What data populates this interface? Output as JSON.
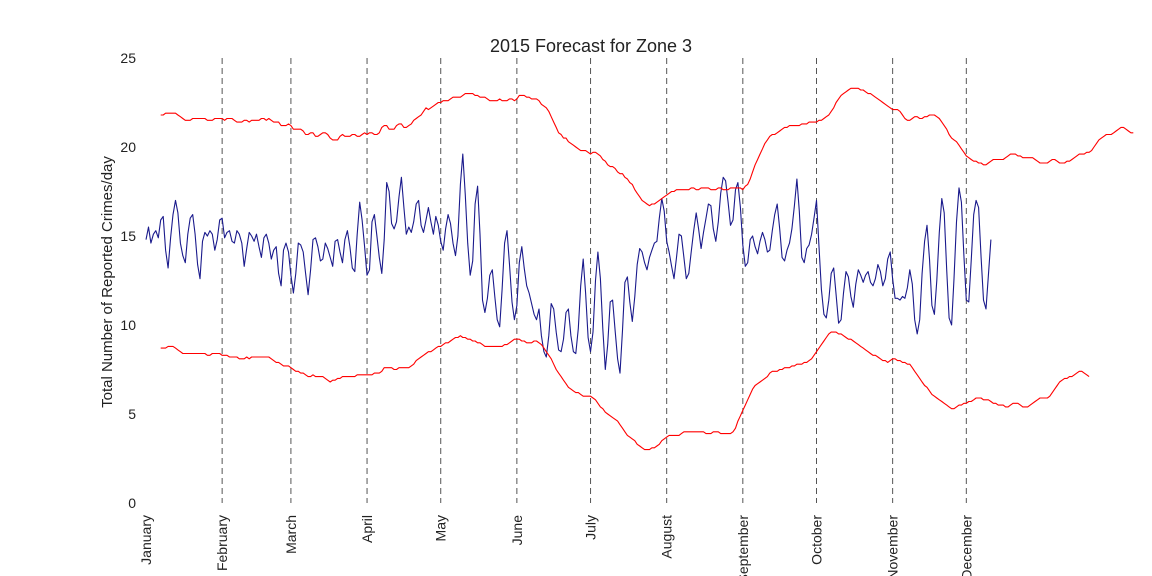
{
  "chart_data": {
    "type": "line",
    "title": "2015 Forecast for Zone 3",
    "xlabel": "",
    "ylabel": "Total Number of Reported Crimes/day",
    "ylim": [
      0,
      25
    ],
    "xlim": [
      "2015-01-01",
      "2015-12-31"
    ],
    "yticks": [
      0,
      5,
      10,
      15,
      20,
      25
    ],
    "month_ticks": [
      "January",
      "February",
      "March",
      "April",
      "May",
      "June",
      "July",
      "August",
      "September",
      "October",
      "November",
      "December"
    ],
    "month_lines": [
      "2015-02-01",
      "2015-03-01",
      "2015-04-01",
      "2015-05-01",
      "2015-06-01",
      "2015-07-01",
      "2015-08-01",
      "2015-09-01",
      "2015-10-01",
      "2015-11-01",
      "2015-12-01"
    ],
    "grid": false,
    "colors": {
      "forecast": "#1a1a8c",
      "bounds": "#ff0000",
      "month_lines": "#555555"
    },
    "series": [
      {
        "role": "forecast",
        "x_start": "2015-01-01",
        "x_step_days": 1,
        "values": [
          14.8,
          15.5,
          14.6,
          15.1,
          15.3,
          14.9,
          15.9,
          16.1,
          14.2,
          13.2,
          14.9,
          16.2,
          17.0,
          16.3,
          14.6,
          13.9,
          13.5,
          15.1,
          16.0,
          16.2,
          15.1,
          13.4,
          12.6,
          14.7,
          15.2,
          15.0,
          15.3,
          15.1,
          14.2,
          14.8,
          15.9,
          16.0,
          14.9,
          15.2,
          15.3,
          14.7,
          14.6,
          15.3,
          15.1,
          14.6,
          13.3,
          14.3,
          15.2,
          15.0,
          14.7,
          15.1,
          14.4,
          13.8,
          14.9,
          15.1,
          14.6,
          13.7,
          14.2,
          14.4,
          12.9,
          12.2,
          14.2,
          14.6,
          14.1,
          12.8,
          11.8,
          12.9,
          14.6,
          14.5,
          14.1,
          12.9,
          11.7,
          13.1,
          14.8,
          14.9,
          14.4,
          13.6,
          13.7,
          14.6,
          14.3,
          13.8,
          13.3,
          14.7,
          14.8,
          14.1,
          13.5,
          14.8,
          15.3,
          14.4,
          13.2,
          13.0,
          15.1,
          16.9,
          15.9,
          14.4,
          12.8,
          13.1,
          15.8,
          16.2,
          15.0,
          13.8,
          12.9,
          14.8,
          18.0,
          17.5,
          15.7,
          15.4,
          15.8,
          17.2,
          18.3,
          16.6,
          15.1,
          15.5,
          15.2,
          15.8,
          16.8,
          17.0,
          15.6,
          15.2,
          15.9,
          16.6,
          15.8,
          15.1,
          16.1,
          15.6,
          14.7,
          14.2,
          15.4,
          16.2,
          15.7,
          14.6,
          13.9,
          15.0,
          17.9,
          19.6,
          17.3,
          14.6,
          12.8,
          13.6,
          16.8,
          17.8,
          15.1,
          11.4,
          10.7,
          11.5,
          12.8,
          13.1,
          11.6,
          10.3,
          9.9,
          12.0,
          14.6,
          15.3,
          13.4,
          11.3,
          10.3,
          11.1,
          13.5,
          14.4,
          13.2,
          12.2,
          11.8,
          11.2,
          10.6,
          10.3,
          10.9,
          9.4,
          8.5,
          8.2,
          9.4,
          11.2,
          10.9,
          9.6,
          8.6,
          8.5,
          9.2,
          10.7,
          10.9,
          9.4,
          8.5,
          8.4,
          9.8,
          12.2,
          13.7,
          11.8,
          9.3,
          8.5,
          9.6,
          12.5,
          14.1,
          12.6,
          9.8,
          7.5,
          8.9,
          11.3,
          11.4,
          9.7,
          8.1,
          7.3,
          9.7,
          12.4,
          12.7,
          11.3,
          10.2,
          11.6,
          13.4,
          14.3,
          14.1,
          13.5,
          13.1,
          13.8,
          14.2,
          14.6,
          14.7,
          16.0,
          17.1,
          16.4,
          14.7,
          14.1,
          13.3,
          12.6,
          13.8,
          15.1,
          15.0,
          13.8,
          12.6,
          12.9,
          14.1,
          15.3,
          16.3,
          15.4,
          14.3,
          15.2,
          16.0,
          16.8,
          16.7,
          15.4,
          14.7,
          15.8,
          17.4,
          18.3,
          18.1,
          16.9,
          15.6,
          15.9,
          17.6,
          18.0,
          16.6,
          14.5,
          13.3,
          13.5,
          14.8,
          15.0,
          14.4,
          14.0,
          14.7,
          15.2,
          14.8,
          14.1,
          14.2,
          15.3,
          16.2,
          16.8,
          15.4,
          13.8,
          13.6,
          14.2,
          14.6,
          15.4,
          16.7,
          18.2,
          16.4,
          13.8,
          13.5,
          14.3,
          14.5,
          15.1,
          16.0,
          17.0,
          14.4,
          12.0,
          10.6,
          10.4,
          11.4,
          12.9,
          13.2,
          11.7,
          10.1,
          10.3,
          11.8,
          13.0,
          12.7,
          11.6,
          11.0,
          12.3,
          13.1,
          12.8,
          12.4,
          12.8,
          13.0,
          12.4,
          12.2,
          12.6,
          13.4,
          13.0,
          12.2,
          12.6,
          13.7,
          14.1,
          12.6,
          11.5,
          11.5,
          11.4,
          11.6,
          11.5,
          12.1,
          13.1,
          12.3,
          10.3,
          9.5,
          10.3,
          12.9,
          14.7,
          15.6,
          13.7,
          11.1,
          10.6,
          12.5,
          15.2,
          17.1,
          16.3,
          13.1,
          10.4,
          10.0,
          12.6,
          15.8,
          17.7,
          16.9,
          13.9,
          11.4,
          11.3,
          13.6,
          16.2,
          17.0,
          16.6,
          13.8,
          11.4,
          10.9,
          12.8,
          14.8
        ]
      },
      {
        "role": "upper_bound",
        "x_start": "2015-01-07",
        "x_step_days": 1,
        "values": [
          21.8,
          21.8,
          21.9,
          21.9,
          21.9,
          21.9,
          21.9,
          21.8,
          21.7,
          21.6,
          21.5,
          21.5,
          21.5,
          21.6,
          21.6,
          21.6,
          21.6,
          21.6,
          21.6,
          21.5,
          21.5,
          21.5,
          21.6,
          21.6,
          21.6,
          21.6,
          21.5,
          21.6,
          21.6,
          21.6,
          21.5,
          21.4,
          21.4,
          21.4,
          21.5,
          21.5,
          21.4,
          21.5,
          21.5,
          21.5,
          21.5,
          21.6,
          21.6,
          21.5,
          21.6,
          21.5,
          21.4,
          21.4,
          21.4,
          21.2,
          21.2,
          21.2,
          21.3,
          21.2,
          21.0,
          21.0,
          21.0,
          21.0,
          20.9,
          20.7,
          20.7,
          20.8,
          20.8,
          20.6,
          20.6,
          20.7,
          20.8,
          20.8,
          20.7,
          20.5,
          20.4,
          20.4,
          20.4,
          20.6,
          20.7,
          20.6,
          20.6,
          20.6,
          20.7,
          20.7,
          20.6,
          20.6,
          20.7,
          20.8,
          20.7,
          20.8,
          20.8,
          20.7,
          20.7,
          20.8,
          21.1,
          21.2,
          21.2,
          21.0,
          21.0,
          21.0,
          21.2,
          21.3,
          21.3,
          21.1,
          21.1,
          21.2,
          21.3,
          21.5,
          21.6,
          21.7,
          21.8,
          22.0,
          22.2,
          22.1,
          22.2,
          22.3,
          22.4,
          22.5,
          22.5,
          22.6,
          22.6,
          22.6,
          22.7,
          22.8,
          22.8,
          22.8,
          22.8,
          22.9,
          23.0,
          23.0,
          23.0,
          23.0,
          22.9,
          22.9,
          22.8,
          22.8,
          22.8,
          22.7,
          22.6,
          22.6,
          22.6,
          22.6,
          22.7,
          22.6,
          22.6,
          22.6,
          22.7,
          22.7,
          22.6,
          22.7,
          22.9,
          22.9,
          22.9,
          22.8,
          22.8,
          22.7,
          22.7,
          22.7,
          22.6,
          22.4,
          22.3,
          22.2,
          22.0,
          21.7,
          21.4,
          21.1,
          20.8,
          20.7,
          20.5,
          20.5,
          20.3,
          20.2,
          20.1,
          20.0,
          19.9,
          19.8,
          19.8,
          19.8,
          19.7,
          19.6,
          19.7,
          19.7,
          19.6,
          19.5,
          19.3,
          19.2,
          19.0,
          18.9,
          18.9,
          18.8,
          18.6,
          18.5,
          18.5,
          18.3,
          18.2,
          18.0,
          17.9,
          17.6,
          17.4,
          17.2,
          17.0,
          16.9,
          16.8,
          16.7,
          16.8,
          16.8,
          16.9,
          17.0,
          17.1,
          17.2,
          17.3,
          17.4,
          17.5,
          17.5,
          17.6,
          17.6,
          17.6,
          17.6,
          17.6,
          17.6,
          17.7,
          17.7,
          17.6,
          17.6,
          17.7,
          17.7,
          17.7,
          17.7,
          17.6,
          17.6,
          17.6,
          17.7,
          17.7,
          17.6,
          17.6,
          17.6,
          17.7,
          17.7,
          17.7,
          17.7,
          17.7,
          17.6,
          17.8,
          17.9,
          18.2,
          18.6,
          19.0,
          19.3,
          19.6,
          19.9,
          20.2,
          20.4,
          20.6,
          20.7,
          20.7,
          20.8,
          20.9,
          21.0,
          21.1,
          21.1,
          21.2,
          21.2,
          21.2,
          21.2,
          21.2,
          21.3,
          21.3,
          21.3,
          21.4,
          21.4,
          21.4,
          21.4,
          21.5,
          21.5,
          21.6,
          21.7,
          21.8,
          22.0,
          22.2,
          22.5,
          22.7,
          22.9,
          23.0,
          23.1,
          23.2,
          23.3,
          23.3,
          23.3,
          23.3,
          23.2,
          23.2,
          23.1,
          23.0,
          23.0,
          22.9,
          22.8,
          22.7,
          22.6,
          22.5,
          22.4,
          22.3,
          22.2,
          22.1,
          22.1,
          22.1,
          22.0,
          21.8,
          21.6,
          21.5,
          21.5,
          21.6,
          21.7,
          21.7,
          21.6,
          21.6,
          21.7,
          21.7,
          21.8,
          21.8,
          21.8,
          21.7,
          21.6,
          21.4,
          21.2,
          21.0,
          20.7,
          20.5,
          20.4,
          20.3,
          20.1,
          19.9,
          19.7,
          19.5,
          19.4,
          19.3,
          19.2,
          19.2,
          19.1,
          19.1,
          19.0,
          19.0,
          19.1,
          19.2,
          19.3,
          19.3,
          19.3,
          19.3,
          19.3,
          19.4,
          19.5,
          19.6,
          19.6,
          19.6,
          19.5,
          19.5,
          19.4,
          19.4,
          19.4,
          19.4,
          19.4,
          19.3,
          19.2,
          19.1,
          19.1,
          19.1,
          19.1,
          19.2,
          19.3,
          19.3,
          19.2,
          19.1,
          19.1,
          19.1,
          19.2,
          19.2,
          19.3,
          19.4,
          19.5,
          19.6,
          19.6,
          19.6,
          19.7,
          19.7,
          19.8,
          20.0,
          20.2,
          20.4,
          20.5,
          20.6,
          20.7,
          20.7,
          20.7,
          20.8,
          20.9,
          21.0,
          21.1,
          21.1,
          21.0,
          20.9,
          20.8,
          20.8
        ]
      },
      {
        "role": "lower_bound",
        "x_start": "2015-01-07",
        "x_step_days": 1,
        "values": [
          8.7,
          8.7,
          8.7,
          8.8,
          8.8,
          8.8,
          8.7,
          8.6,
          8.5,
          8.4,
          8.4,
          8.4,
          8.4,
          8.4,
          8.4,
          8.4,
          8.4,
          8.4,
          8.4,
          8.3,
          8.3,
          8.4,
          8.4,
          8.4,
          8.4,
          8.3,
          8.3,
          8.3,
          8.2,
          8.2,
          8.2,
          8.2,
          8.1,
          8.1,
          8.1,
          8.2,
          8.1,
          8.2,
          8.2,
          8.2,
          8.2,
          8.2,
          8.2,
          8.2,
          8.2,
          8.1,
          8.0,
          7.9,
          7.9,
          7.8,
          7.7,
          7.7,
          7.7,
          7.6,
          7.5,
          7.4,
          7.4,
          7.3,
          7.3,
          7.2,
          7.1,
          7.1,
          7.2,
          7.1,
          7.1,
          7.1,
          7.1,
          7.0,
          6.9,
          6.8,
          6.9,
          6.9,
          7.0,
          7.0,
          7.1,
          7.1,
          7.1,
          7.1,
          7.1,
          7.1,
          7.2,
          7.2,
          7.2,
          7.2,
          7.2,
          7.2,
          7.2,
          7.3,
          7.3,
          7.3,
          7.4,
          7.6,
          7.6,
          7.6,
          7.6,
          7.5,
          7.5,
          7.6,
          7.6,
          7.6,
          7.6,
          7.6,
          7.7,
          7.8,
          8.0,
          8.1,
          8.2,
          8.3,
          8.4,
          8.5,
          8.5,
          8.6,
          8.7,
          8.8,
          8.8,
          8.9,
          9.0,
          9.0,
          9.1,
          9.2,
          9.3,
          9.3,
          9.4,
          9.3,
          9.3,
          9.2,
          9.2,
          9.1,
          9.1,
          9.0,
          9.0,
          8.9,
          8.8,
          8.8,
          8.8,
          8.8,
          8.8,
          8.8,
          8.8,
          8.8,
          8.9,
          8.9,
          9.0,
          9.1,
          9.2,
          9.2,
          9.2,
          9.1,
          9.1,
          9.0,
          9.0,
          9.0,
          9.1,
          9.1,
          9.0,
          8.9,
          8.7,
          8.5,
          8.3,
          8.1,
          7.8,
          7.5,
          7.3,
          7.1,
          6.9,
          6.7,
          6.5,
          6.4,
          6.3,
          6.2,
          6.2,
          6.1,
          6.0,
          6.0,
          6.0,
          6.0,
          5.9,
          5.8,
          5.6,
          5.4,
          5.3,
          5.1,
          5.0,
          4.9,
          4.8,
          4.7,
          4.6,
          4.4,
          4.2,
          4.0,
          3.8,
          3.7,
          3.6,
          3.5,
          3.3,
          3.2,
          3.1,
          3.0,
          3.0,
          3.0,
          3.1,
          3.1,
          3.2,
          3.3,
          3.5,
          3.6,
          3.7,
          3.8,
          3.8,
          3.8,
          3.8,
          3.8,
          3.9,
          4.0,
          4.0,
          4.0,
          4.0,
          4.0,
          4.0,
          4.0,
          4.0,
          4.0,
          3.9,
          3.9,
          3.9,
          4.0,
          4.0,
          4.0,
          3.9,
          3.9,
          3.9,
          3.9,
          3.9,
          4.0,
          4.2,
          4.6,
          4.9,
          5.2,
          5.5,
          5.8,
          6.1,
          6.4,
          6.6,
          6.7,
          6.8,
          6.9,
          7.0,
          7.1,
          7.3,
          7.4,
          7.4,
          7.4,
          7.5,
          7.5,
          7.6,
          7.6,
          7.6,
          7.7,
          7.7,
          7.8,
          7.8,
          7.8,
          7.9,
          7.9,
          8.0,
          8.1,
          8.3,
          8.5,
          8.7,
          8.9,
          9.1,
          9.3,
          9.5,
          9.6,
          9.6,
          9.6,
          9.5,
          9.5,
          9.4,
          9.3,
          9.2,
          9.2,
          9.1,
          9.0,
          8.9,
          8.8,
          8.7,
          8.6,
          8.5,
          8.4,
          8.3,
          8.3,
          8.2,
          8.1,
          8.0,
          8.0,
          7.9,
          8.0,
          8.1,
          8.1,
          8.0,
          8.0,
          7.9,
          7.9,
          7.8,
          7.8,
          7.6,
          7.4,
          7.2,
          7.0,
          6.8,
          6.6,
          6.5,
          6.3,
          6.1,
          6.0,
          5.9,
          5.8,
          5.7,
          5.6,
          5.5,
          5.4,
          5.3,
          5.3,
          5.4,
          5.5,
          5.5,
          5.6,
          5.6,
          5.7,
          5.7,
          5.8,
          5.9,
          5.9,
          5.9,
          5.8,
          5.8,
          5.8,
          5.7,
          5.6,
          5.6,
          5.5,
          5.5,
          5.5,
          5.4,
          5.4,
          5.5,
          5.6,
          5.6,
          5.6,
          5.5,
          5.4,
          5.4,
          5.4,
          5.5,
          5.6,
          5.7,
          5.8,
          5.9,
          5.9,
          5.9,
          5.9,
          6.0,
          6.2,
          6.4,
          6.6,
          6.8,
          6.9,
          7.0,
          7.0,
          7.1,
          7.1,
          7.2,
          7.3,
          7.4,
          7.4,
          7.3,
          7.2,
          7.1
        ]
      }
    ]
  }
}
